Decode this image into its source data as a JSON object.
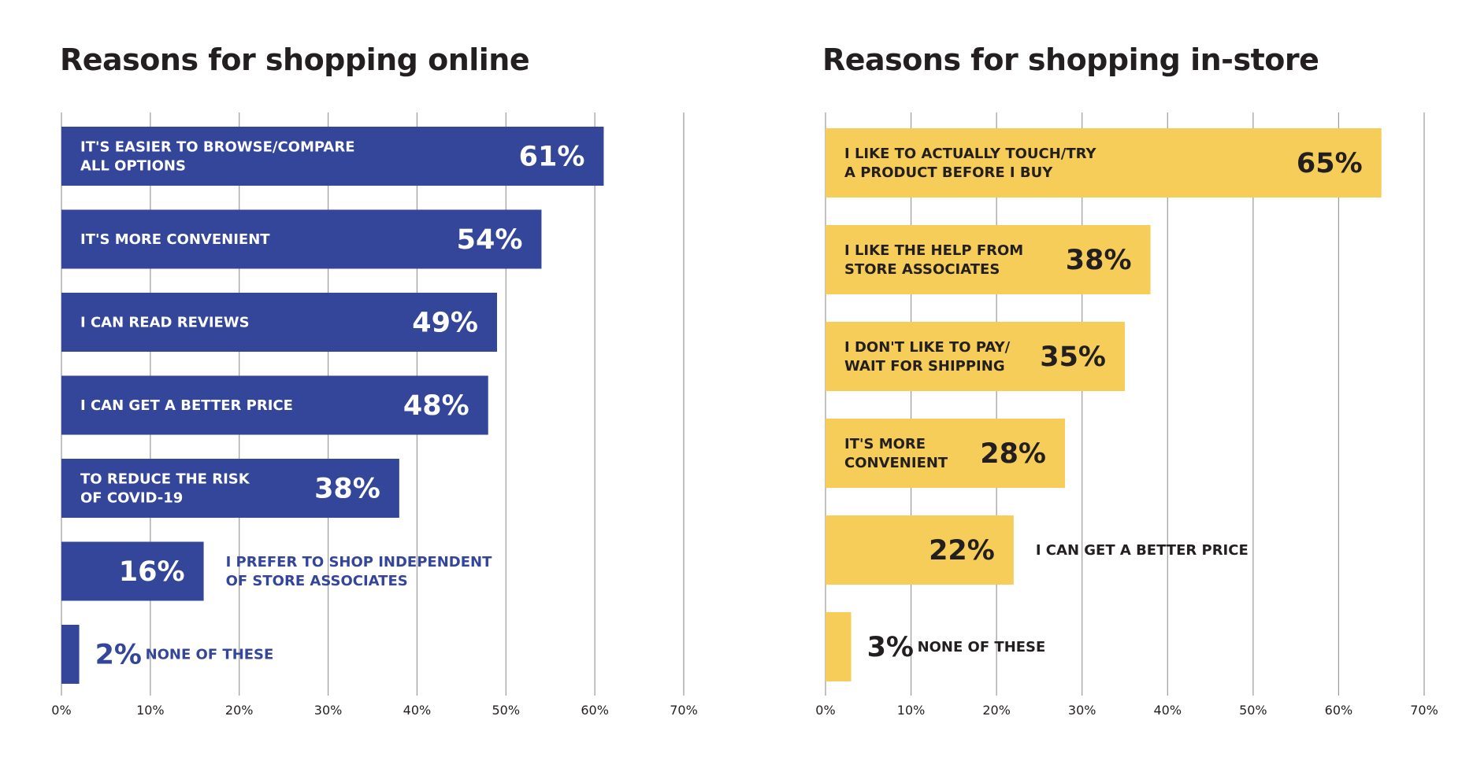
{
  "colors": {
    "online": "#334699",
    "instore": "#f6cd58",
    "instore_text": "#231f20",
    "grid": "#9a9a9a"
  },
  "chart_data": [
    {
      "type": "bar",
      "orientation": "horizontal",
      "title": "Reasons for shopping online",
      "xlim": [
        0,
        70
      ],
      "grid": true,
      "ticks": [
        "0%",
        "10%",
        "20%",
        "30%",
        "40%",
        "50%",
        "60%",
        "70%"
      ],
      "categories": [
        [
          "IT'S EASIER TO BROWSE/COMPARE",
          "ALL OPTIONS"
        ],
        [
          "IT'S MORE CONVENIENT"
        ],
        [
          "I CAN READ REVIEWS"
        ],
        [
          "I CAN GET A BETTER PRICE"
        ],
        [
          "TO REDUCE THE RISK",
          "OF COVID-19"
        ],
        [
          "I PREFER TO SHOP INDEPENDENT",
          "OF STORE ASSOCIATES"
        ],
        [
          "NONE OF THESE"
        ]
      ],
      "values": [
        61,
        54,
        49,
        48,
        38,
        16,
        2
      ],
      "value_labels": [
        "61%",
        "54%",
        "49%",
        "48%",
        "38%",
        "16%",
        "2%"
      ]
    },
    {
      "type": "bar",
      "orientation": "horizontal",
      "title": "Reasons for shopping in-store",
      "xlim": [
        0,
        70
      ],
      "grid": true,
      "ticks": [
        "0%",
        "10%",
        "20%",
        "30%",
        "40%",
        "50%",
        "60%",
        "70%"
      ],
      "categories": [
        [
          "I LIKE TO ACTUALLY TOUCH/TRY",
          "A PRODUCT BEFORE I BUY"
        ],
        [
          "I LIKE THE HELP FROM",
          "STORE ASSOCIATES"
        ],
        [
          "I DON'T LIKE TO PAY/",
          "WAIT FOR SHIPPING"
        ],
        [
          "IT'S MORE",
          "CONVENIENT"
        ],
        [
          "I CAN GET A BETTER PRICE"
        ],
        [
          "NONE OF THESE"
        ]
      ],
      "values": [
        65,
        38,
        35,
        28,
        22,
        3
      ],
      "value_labels": [
        "65%",
        "38%",
        "35%",
        "28%",
        "22%",
        "3%"
      ]
    }
  ]
}
